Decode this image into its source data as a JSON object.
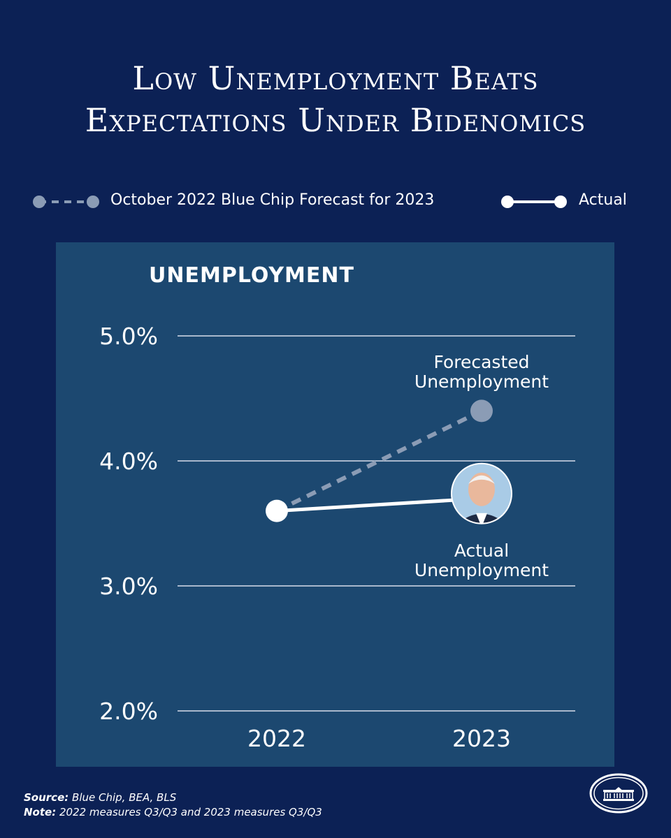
{
  "title": {
    "line1": "Low Unemployment Beats",
    "line2": "Expectations Under Bidenomics"
  },
  "legend": {
    "forecast_label": "October 2022 Blue Chip Forecast for 2023",
    "actual_label": "Actual"
  },
  "colors": {
    "background": "#0c2155",
    "panel": "#1c4870",
    "forecast": "#8b9cb5",
    "actual": "#ffffff",
    "grid": "#a9b8cc"
  },
  "chart_data": {
    "type": "line",
    "title": "UNEMPLOYMENT",
    "categories": [
      "2022",
      "2023"
    ],
    "yticks": [
      "5.0%",
      "4.0%",
      "3.0%",
      "2.0%"
    ],
    "ylim": [
      2.0,
      5.0
    ],
    "grid": true,
    "series": [
      {
        "name": "October 2022 Blue Chip Forecast for 2023",
        "values": [
          3.6,
          4.4
        ],
        "style": "dashed"
      },
      {
        "name": "Actual",
        "values": [
          3.6,
          3.7
        ],
        "style": "solid"
      }
    ],
    "annotations": {
      "forecast": [
        "Forecasted",
        "Unemployment"
      ],
      "actual": [
        "Actual",
        "Unemployment"
      ]
    }
  },
  "footer": {
    "source_label": "Source:",
    "source_text": "Blue Chip, BEA, BLS",
    "note_label": "Note:",
    "note_text": "2022 measures Q3/Q3 and 2023 measures Q3/Q3"
  },
  "icons": {
    "logo": "white-house-icon",
    "portrait": "person-portrait-icon"
  }
}
